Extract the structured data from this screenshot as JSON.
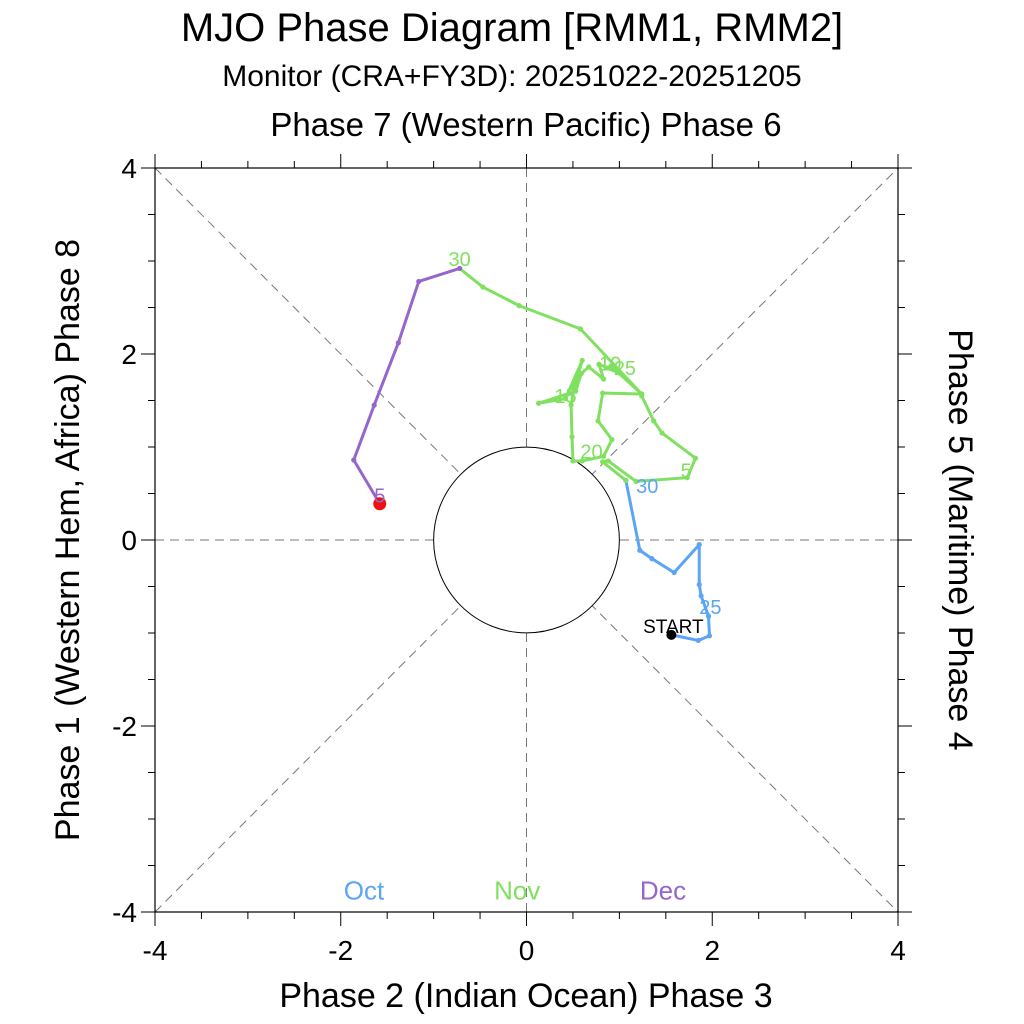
{
  "title": "MJO Phase Diagram [RMM1, RMM2]",
  "subtitle": "Monitor (CRA+FY3D): 20251022-20251205",
  "top_label": "Phase 7 (Western Pacific) Phase 6",
  "bottom_label": "Phase 2 (Indian Ocean) Phase 3",
  "left_label": "Phase 1 (Western Hem, Africa) Phase 8",
  "right_label": "Phase 5 (Maritime) Phase 4",
  "colors": {
    "oct": "#5aa5f5",
    "nov": "#80e060",
    "dec": "#9566cc",
    "end_marker": "#ee1111",
    "start_marker": "#000000"
  },
  "chart_data": {
    "type": "line",
    "title": "MJO Phase Diagram [RMM1, RMM2]",
    "xlabel": "Phase 2 (Indian Ocean) Phase 3",
    "ylabel": "Phase 1 (Western Hem, Africa) Phase 8",
    "xlim": [
      -4,
      4
    ],
    "ylim": [
      -4,
      4
    ],
    "x_ticks": [
      -4,
      -2,
      0,
      2,
      4
    ],
    "y_ticks": [
      -4,
      -2,
      0,
      2,
      4
    ],
    "x_tick_labels": [
      "-4",
      "-2",
      "0",
      "2",
      "4"
    ],
    "y_tick_labels": [
      "-4",
      "-2",
      "0",
      "2",
      "4"
    ],
    "unit_circle_radius": 1,
    "start_label": "START",
    "legend": [
      {
        "name": "Oct",
        "color_key": "oct"
      },
      {
        "name": "Nov",
        "color_key": "nov"
      },
      {
        "name": "Dec",
        "color_key": "dec"
      }
    ],
    "series": [
      {
        "name": "Oct",
        "color_key": "oct",
        "x": [
          1.56,
          1.85,
          1.97,
          1.96,
          1.88,
          1.86,
          1.86,
          1.59,
          1.35,
          1.22,
          1.07
        ],
        "y": [
          -1.02,
          -1.08,
          -1.03,
          -0.82,
          -0.6,
          -0.48,
          -0.05,
          -0.35,
          -0.2,
          -0.11,
          0.64
        ]
      },
      {
        "name": "Nov",
        "color_key": "nov",
        "x": [
          1.07,
          0.82,
          0.88,
          1.18,
          1.73,
          1.82,
          1.46,
          1.37,
          1.24,
          1.24,
          0.82,
          0.77,
          0.92,
          0.83,
          0.6,
          0.5,
          0.49,
          0.48,
          0.51,
          0.52,
          0.6,
          0.42,
          0.13,
          0.53,
          0.59,
          0.67,
          0.83,
          0.78,
          0.99,
          0.86,
          0.91,
          1.24,
          0.58,
          -0.08,
          -0.47,
          -0.72
        ],
        "y": [
          0.64,
          0.84,
          0.85,
          0.63,
          0.67,
          0.88,
          1.15,
          1.28,
          1.55,
          1.57,
          1.58,
          1.28,
          1.08,
          0.9,
          0.85,
          0.85,
          1.11,
          1.45,
          1.63,
          1.66,
          1.93,
          1.52,
          1.47,
          1.6,
          1.79,
          1.86,
          1.73,
          1.89,
          1.8,
          1.85,
          1.87,
          1.57,
          2.27,
          2.52,
          2.72,
          2.92
        ]
      },
      {
        "name": "Dec",
        "color_key": "dec",
        "x": [
          -0.72,
          -1.16,
          -1.38,
          -1.64,
          -1.86,
          -1.58
        ],
        "y": [
          2.92,
          2.78,
          2.12,
          1.45,
          0.86,
          0.39
        ]
      }
    ],
    "day_labels": [
      {
        "text": "25",
        "x": 1.98,
        "y": -0.72,
        "color_key": "oct"
      },
      {
        "text": "30",
        "x": 1.3,
        "y": 0.58,
        "color_key": "oct"
      },
      {
        "text": "5",
        "x": 1.72,
        "y": 0.75,
        "color_key": "nov"
      },
      {
        "text": "10",
        "x": 0.9,
        "y": 1.9,
        "color_key": "nov"
      },
      {
        "text": "15",
        "x": 0.42,
        "y": 1.55,
        "color_key": "nov"
      },
      {
        "text": "20",
        "x": 0.7,
        "y": 0.95,
        "color_key": "nov"
      },
      {
        "text": "25",
        "x": 1.06,
        "y": 1.85,
        "color_key": "nov"
      },
      {
        "text": "30",
        "x": -0.72,
        "y": 3.02,
        "color_key": "nov"
      },
      {
        "text": "5",
        "x": -1.58,
        "y": 0.48,
        "color_key": "dec"
      }
    ],
    "start_point": {
      "x": 1.56,
      "y": -1.02
    },
    "end_point": {
      "x": -1.58,
      "y": 0.39
    }
  }
}
